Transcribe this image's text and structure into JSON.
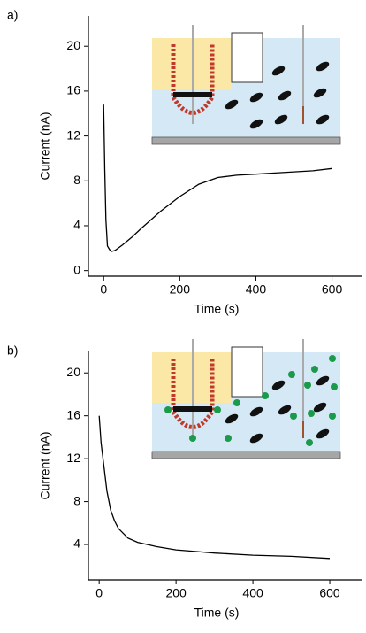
{
  "chart_data": [
    {
      "type": "line",
      "panel_label": "a)",
      "x_label": "Time (s)",
      "y_label": "Current (nA)",
      "x": [
        0,
        3,
        6,
        10,
        15,
        20,
        30,
        50,
        75,
        100,
        150,
        200,
        250,
        300,
        350,
        400,
        450,
        500,
        550,
        600
      ],
      "values": [
        14.8,
        9,
        4.5,
        2.2,
        1.9,
        1.7,
        1.8,
        2.3,
        3,
        3.8,
        5.3,
        6.6,
        7.7,
        8.3,
        8.5,
        8.6,
        8.7,
        8.8,
        8.9,
        9.1
      ],
      "color": "#000000",
      "xlim": [
        -40,
        680
      ],
      "ylim": [
        -0.5,
        22.7
      ],
      "xticks": [
        0,
        200,
        400,
        600
      ],
      "yticks": [
        0,
        4,
        8,
        12,
        16,
        20
      ]
    },
    {
      "type": "line",
      "panel_label": "b)",
      "x_label": "Time (s)",
      "y_label": "Current (nA)",
      "x": [
        0,
        5,
        10,
        20,
        30,
        40,
        50,
        75,
        100,
        150,
        200,
        250,
        300,
        400,
        500,
        600
      ],
      "values": [
        16,
        13.5,
        12,
        9,
        7.2,
        6.2,
        5.5,
        4.6,
        4.2,
        3.8,
        3.5,
        3.35,
        3.2,
        3.0,
        2.9,
        2.7
      ],
      "color": "#000000",
      "xlim": [
        -28,
        685
      ],
      "ylim": [
        0.7,
        22
      ],
      "xticks": [
        0,
        200,
        400,
        600
      ],
      "yticks": [
        4,
        8,
        12,
        16,
        20
      ]
    }
  ]
}
